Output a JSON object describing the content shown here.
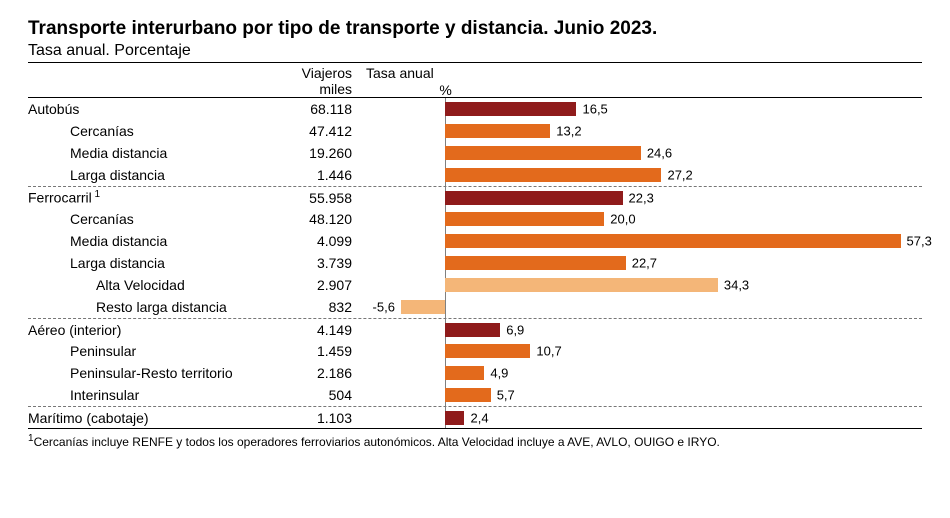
{
  "title": "Transporte interurbano por tipo de transporte y distancia. Junio 2023.",
  "subtitle": "Tasa anual. Porcentaje",
  "columns": {
    "travelers_top": "Viajeros",
    "travelers_sub": "miles",
    "rate_top": "Tasa anual",
    "rate_sub": "%"
  },
  "chart": {
    "min": -10,
    "max": 60,
    "zero_offset_pct": 14.3,
    "colors": {
      "main": "#8f1b1b",
      "sub": "#e36a1c",
      "highlight": "#f4b678",
      "axis": "#808080"
    }
  },
  "groups": [
    {
      "main": {
        "label": "Autobús",
        "value": "68.118",
        "rate": 16.5,
        "color": "main"
      },
      "children": [
        {
          "label": "Cercanías",
          "value": "47.412",
          "rate": 13.2,
          "indent": 1,
          "color": "sub"
        },
        {
          "label": "Media distancia",
          "value": "19.260",
          "rate": 24.6,
          "indent": 1,
          "color": "sub"
        },
        {
          "label": "Larga distancia",
          "value": "1.446",
          "rate": 27.2,
          "indent": 1,
          "color": "sub"
        }
      ]
    },
    {
      "main": {
        "label": "Ferrocarril",
        "sup": "1",
        "value": "55.958",
        "rate": 22.3,
        "color": "main"
      },
      "children": [
        {
          "label": "Cercanías",
          "value": "48.120",
          "rate": 20.0,
          "indent": 1,
          "color": "sub"
        },
        {
          "label": "Media distancia",
          "value": "4.099",
          "rate": 57.3,
          "indent": 1,
          "color": "sub"
        },
        {
          "label": "Larga distancia",
          "value": "3.739",
          "rate": 22.7,
          "indent": 1,
          "color": "sub"
        },
        {
          "label": "Alta Velocidad",
          "value": "2.907",
          "rate": 34.3,
          "indent": 2,
          "color": "highlight"
        },
        {
          "label": "Resto larga distancia",
          "value": "832",
          "rate": -5.6,
          "indent": 2,
          "color": "highlight"
        }
      ]
    },
    {
      "main": {
        "label": "Aéreo (interior)",
        "value": "4.149",
        "rate": 6.9,
        "color": "main"
      },
      "children": [
        {
          "label": "Peninsular",
          "value": "1.459",
          "rate": 10.7,
          "indent": 1,
          "color": "sub"
        },
        {
          "label": "Peninsular-Resto territorio",
          "value": "2.186",
          "rate": 4.9,
          "indent": 1,
          "color": "sub"
        },
        {
          "label": "Interinsular",
          "value": "504",
          "rate": 5.7,
          "indent": 1,
          "color": "sub"
        }
      ]
    },
    {
      "main": {
        "label": "Marítimo (cabotaje)",
        "value": "1.103",
        "rate": 2.4,
        "color": "main"
      },
      "children": []
    }
  ],
  "footnote_sup": "1",
  "footnote": "Cercanías incluye RENFE y todos los operadores ferroviarios autonómicos. Alta Velocidad incluye a AVE, AVLO, OUIGO e IRYO."
}
